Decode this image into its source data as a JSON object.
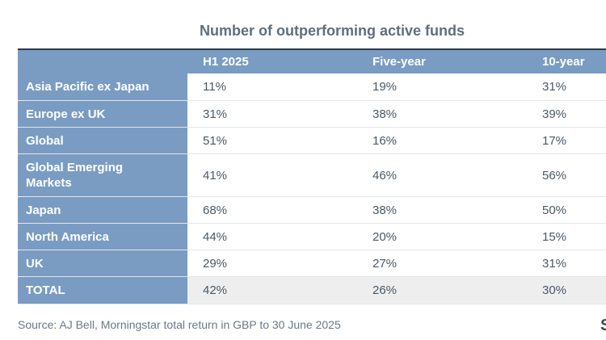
{
  "chart_data": {
    "type": "table",
    "title": "Number of outperforming active funds",
    "columns": [
      "",
      "H1 2025",
      "Five-year",
      "10-year"
    ],
    "rows": [
      {
        "label": "Asia Pacific ex Japan",
        "values": [
          "11%",
          "19%",
          "31%"
        ],
        "height": 33
      },
      {
        "label": "Europe ex UK",
        "values": [
          "31%",
          "38%",
          "39%"
        ],
        "height": 32
      },
      {
        "label": "Global",
        "values": [
          "51%",
          "16%",
          "17%"
        ],
        "height": 32
      },
      {
        "label": "Global Emerging Markets",
        "values": [
          "41%",
          "46%",
          "56%"
        ],
        "height": 52
      },
      {
        "label": "Japan",
        "values": [
          "68%",
          "38%",
          "50%"
        ],
        "height": 32
      },
      {
        "label": "North America",
        "values": [
          "44%",
          "20%",
          "15%"
        ],
        "height": 32
      },
      {
        "label": "UK",
        "values": [
          "29%",
          "27%",
          "31%"
        ],
        "height": 32
      },
      {
        "label": "TOTAL",
        "values": [
          "42%",
          "26%",
          "30%"
        ],
        "height": 33,
        "total": true
      }
    ],
    "source": "Source: AJ Bell, Morningstar total return in GBP to 30 June 2025"
  },
  "colors": {
    "header_bg": "#7a9cc3",
    "label_bg": "#7a9cc3",
    "total_bg": "#eeeeee",
    "rule": "#2b3a48"
  },
  "brand_mark": "S"
}
